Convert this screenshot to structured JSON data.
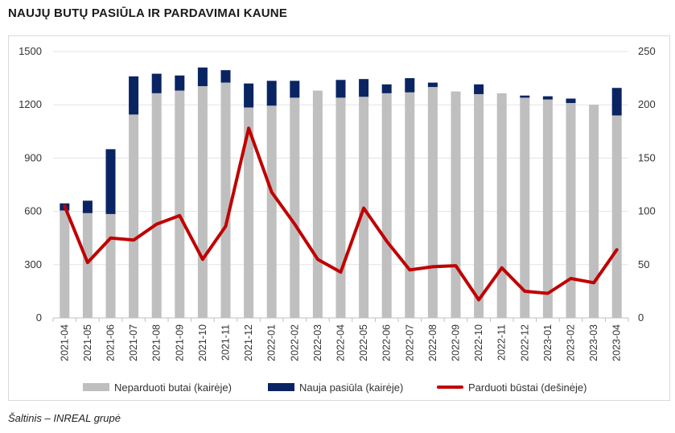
{
  "title": "NAUJŲ BUTŲ PASIŪLA IR PARDAVIMAI KAUNE",
  "source": "Šaltinis – INREAL grupė",
  "chart_data": {
    "type": "bar",
    "subtype": "stacked bar + line (dual axis)",
    "categories": [
      "2021-04",
      "2021-05",
      "2021-06",
      "2021-07",
      "2021-08",
      "2021-09",
      "2021-10",
      "2021-11",
      "2021-12",
      "2022-01",
      "2022-02",
      "2022-03",
      "2022-04",
      "2022-05",
      "2022-06",
      "2022-07",
      "2022-08",
      "2022-09",
      "2022-10",
      "2022-11",
      "2022-12",
      "2023-01",
      "2023-02",
      "2023-03",
      "2023-04"
    ],
    "series": [
      {
        "name": "Neparduoti butai (kairėje)",
        "type": "bar",
        "axis": "left",
        "color": "#bfbfbf",
        "values": [
          605,
          590,
          585,
          1145,
          1265,
          1280,
          1305,
          1325,
          1185,
          1195,
          1240,
          1280,
          1240,
          1245,
          1265,
          1270,
          1300,
          1275,
          1260,
          1265,
          1240,
          1230,
          1210,
          1200,
          1140
        ]
      },
      {
        "name": "Nauja pasiūla (kairėje)",
        "type": "bar",
        "axis": "left",
        "color": "#0a2463",
        "values": [
          40,
          70,
          365,
          215,
          110,
          85,
          105,
          70,
          135,
          140,
          95,
          0,
          100,
          100,
          50,
          80,
          25,
          0,
          55,
          0,
          12,
          18,
          25,
          0,
          155
        ]
      },
      {
        "name": "Parduoti būstai (dešinėje)",
        "type": "line",
        "axis": "right",
        "color": "#c00000",
        "values": [
          105,
          52,
          75,
          73,
          88,
          96,
          55,
          86,
          178,
          118,
          88,
          55,
          43,
          103,
          72,
          45,
          48,
          49,
          17,
          47,
          25,
          23,
          37,
          33,
          64
        ]
      }
    ],
    "y_left": {
      "min": 0,
      "max": 1500,
      "ticks": [
        0,
        300,
        600,
        900,
        1200,
        1500
      ]
    },
    "y_right": {
      "min": 0,
      "max": 250,
      "ticks": [
        0,
        50,
        100,
        150,
        200,
        250
      ]
    },
    "grid": true,
    "legend_position": "bottom"
  }
}
